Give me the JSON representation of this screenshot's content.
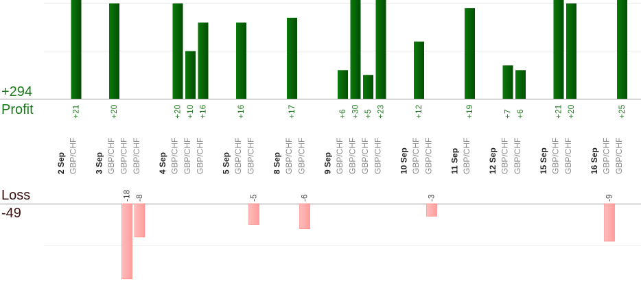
{
  "chart_data": {
    "type": "bar",
    "profit_total": "+294",
    "profit_label": "Profit",
    "loss_label": "Loss",
    "loss_total": "-49",
    "colors": {
      "profit_bar": "#0a6a0a",
      "profit_text": "#1f7a1f",
      "loss_bar": "#ffaaaa",
      "loss_text": "#444444",
      "total_text": "#1a7a1a",
      "loss_title": "#3a1010"
    },
    "ylim_profit": [
      0,
      25
    ],
    "ylim_loss": [
      0,
      18
    ],
    "days": [
      {
        "date": "2 Sep",
        "trades": [
          {
            "pair": "GBP/CHF",
            "pl": 21
          }
        ]
      },
      {
        "date": "3 Sep",
        "trades": [
          {
            "pair": "GBP/CHF",
            "pl": 20
          },
          {
            "pair": "GBP/CHF",
            "pl": -18
          },
          {
            "pair": "GBP/CHF",
            "pl": -8
          }
        ]
      },
      {
        "date": "4 Sep",
        "trades": [
          {
            "pair": "GBP/CHF",
            "pl": 20
          },
          {
            "pair": "GBP/CHF",
            "pl": 10
          },
          {
            "pair": "GBP/CHF",
            "pl": 16
          }
        ]
      },
      {
        "date": "5 Sep",
        "trades": [
          {
            "pair": "GBP/CHF",
            "pl": 16
          },
          {
            "pair": "GBP/CHF",
            "pl": -5
          }
        ]
      },
      {
        "date": "8 Sep",
        "trades": [
          {
            "pair": "GBP/CHF",
            "pl": 17
          },
          {
            "pair": "GBP/CHF",
            "pl": -6
          }
        ]
      },
      {
        "date": "9 Sep",
        "trades": [
          {
            "pair": "GBP/CHF",
            "pl": 6
          },
          {
            "pair": "GBP/CHF",
            "pl": 30
          },
          {
            "pair": "GBP/CHF",
            "pl": 5
          },
          {
            "pair": "GBP/CHF",
            "pl": 23
          }
        ]
      },
      {
        "date": "10 Sep",
        "trades": [
          {
            "pair": "GBP/CHF",
            "pl": 12
          },
          {
            "pair": "GBP/CHF",
            "pl": -3
          }
        ]
      },
      {
        "date": "11 Sep",
        "trades": [
          {
            "pair": "GBP/CHF",
            "pl": 19
          }
        ]
      },
      {
        "date": "12 Sep",
        "trades": [
          {
            "pair": "GBP/CHF",
            "pl": 7
          },
          {
            "pair": "GBP/CHF",
            "pl": 6
          }
        ]
      },
      {
        "date": "15 Sep",
        "trades": [
          {
            "pair": "GBP/CHF",
            "pl": 21
          },
          {
            "pair": "GBP/CHF",
            "pl": 20
          }
        ]
      },
      {
        "date": "16 Sep",
        "trades": [
          {
            "pair": "GBP/CHF",
            "pl": -9
          },
          {
            "pair": "GBP/CHF",
            "pl": 25
          }
        ]
      }
    ]
  }
}
